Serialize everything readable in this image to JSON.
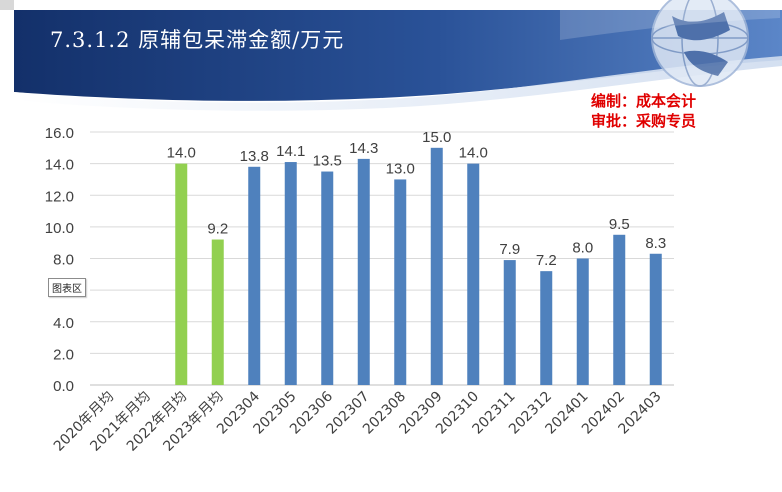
{
  "header": {
    "title": "7.3.1.2   原辅包呆滞金额/万元",
    "sign_line1": "编制：成本会计",
    "sign_line2": "审批：采购专员"
  },
  "tooltip": "图表区",
  "colors": {
    "banner_dark": "#1a3a78",
    "banner_light": "#3f6cb5",
    "bar_green": "#92d050",
    "bar_blue": "#4f81bd",
    "sign_red": "#e00000"
  },
  "chart_data": {
    "type": "bar",
    "categories": [
      "2020年月均",
      "2021年月均",
      "2022年月均",
      "2023年月均",
      "202304",
      "202305",
      "202306",
      "202307",
      "202308",
      "202309",
      "202310",
      "202311",
      "202312",
      "202401",
      "202402",
      "202403"
    ],
    "values": [
      null,
      null,
      14.0,
      9.2,
      13.8,
      14.1,
      13.5,
      14.3,
      13.0,
      15.0,
      14.0,
      7.9,
      7.2,
      8.0,
      9.5,
      8.3
    ],
    "labels": [
      "",
      "",
      "14.0",
      "9.2",
      "13.8",
      "14.1",
      "13.5",
      "14.3",
      "13.0",
      "15.0",
      "14.0",
      "7.9",
      "7.2",
      "8.0",
      "9.5",
      "8.3"
    ],
    "bar_colors": [
      "#92d050",
      "#92d050",
      "#92d050",
      "#92d050",
      "#4f81bd",
      "#4f81bd",
      "#4f81bd",
      "#4f81bd",
      "#4f81bd",
      "#4f81bd",
      "#4f81bd",
      "#4f81bd",
      "#4f81bd",
      "#4f81bd",
      "#4f81bd",
      "#4f81bd"
    ],
    "yticks": [
      "0.0",
      "2.0",
      "4.0",
      "6.0",
      "8.0",
      "10.0",
      "12.0",
      "14.0",
      "16.0"
    ],
    "ylim": [
      0,
      16
    ],
    "grid": true,
    "legend": "none",
    "title": "",
    "xlabel": "",
    "ylabel": ""
  }
}
